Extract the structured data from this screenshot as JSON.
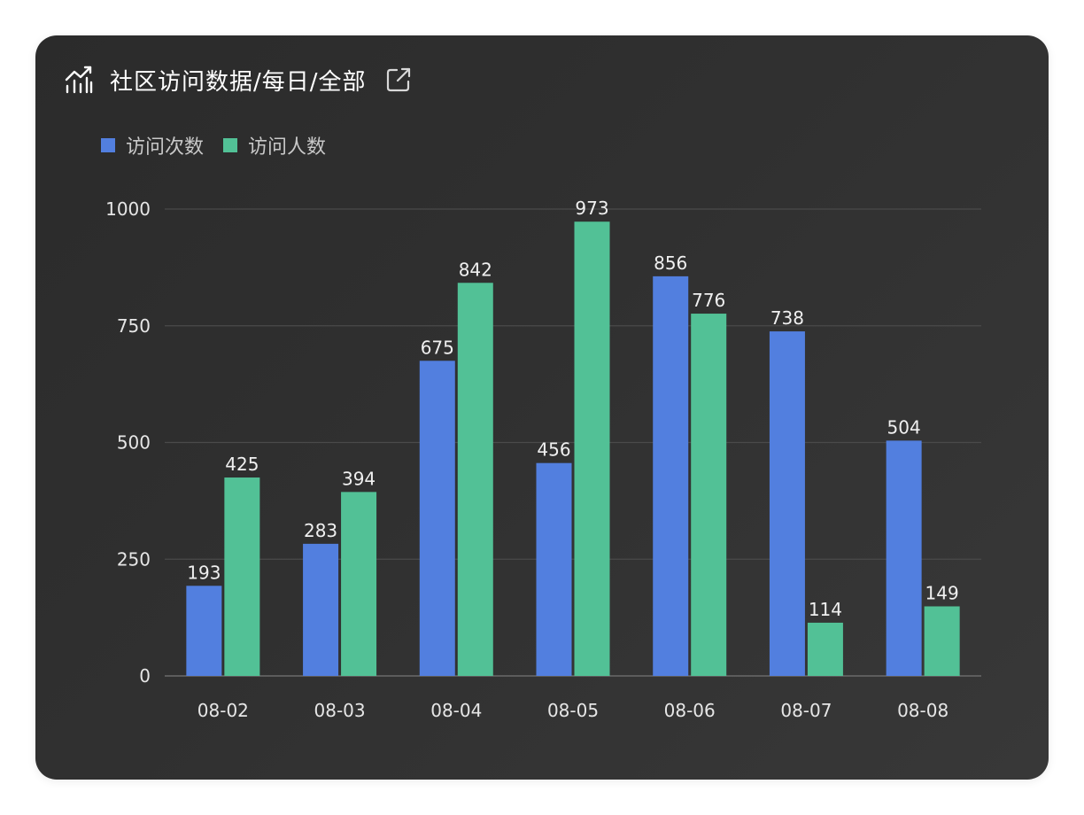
{
  "header": {
    "title": "社区访问数据/每日/全部",
    "icon": "trend-chart-icon",
    "action_icon": "external-link-icon"
  },
  "colors": {
    "visits": "#527fdf",
    "visitors": "#52c196",
    "grid": "#4a4a4a",
    "axis_text": "#e6e6e6"
  },
  "chart_data": {
    "type": "bar",
    "title": "社区访问数据/每日/全部",
    "categories": [
      "08-02",
      "08-03",
      "08-04",
      "08-05",
      "08-06",
      "08-07",
      "08-08"
    ],
    "series": [
      {
        "name": "访问次数",
        "values": [
          193,
          283,
          675,
          456,
          856,
          738,
          504
        ]
      },
      {
        "name": "访问人数",
        "values": [
          425,
          394,
          842,
          973,
          776,
          114,
          149
        ]
      }
    ],
    "ylim": [
      0,
      1000
    ],
    "yticks": [
      0,
      250,
      500,
      750,
      1000
    ],
    "xlabel": "",
    "ylabel": "",
    "grid": true,
    "legend_position": "top-left",
    "data_labels": true
  }
}
